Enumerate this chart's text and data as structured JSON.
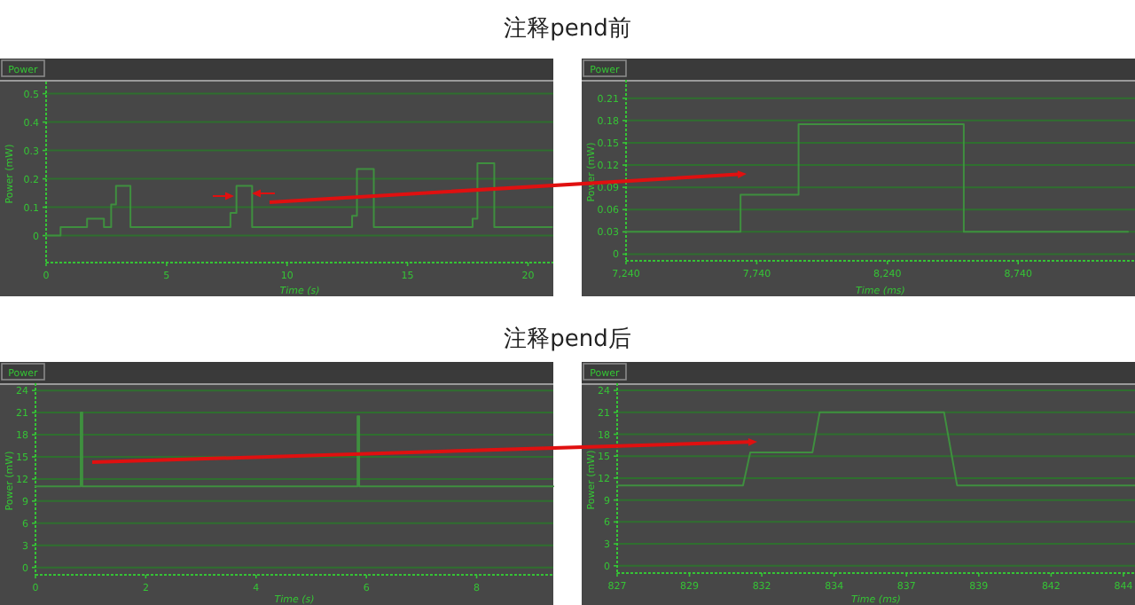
{
  "chart_data": [
    {
      "type": "step",
      "title": "注释pend前",
      "xlabel": "Time (s)",
      "ylabel": "Power (mW)",
      "xlim": [
        0,
        21.05
      ],
      "ylim": [
        -0.095,
        0.53
      ],
      "xticks": [
        0,
        5,
        10,
        15,
        20
      ],
      "yticks": [
        0,
        0.1,
        0.2,
        0.3,
        0.4,
        0.5
      ],
      "grid": "y",
      "legend": "top left",
      "series": [
        {
          "name": "Power",
          "color": "#3f8f3f",
          "x": [
            0,
            0.6,
            1.7,
            2.4,
            2.7,
            2.9,
            3.5,
            7.65,
            7.9,
            8.55,
            12.7,
            12.9,
            13.6,
            17.7,
            17.9,
            18.6,
            21
          ],
          "values": [
            0,
            0.03,
            0.06,
            0.03,
            0.11,
            0.175,
            0.03,
            0.08,
            0.175,
            0.03,
            0.07,
            0.235,
            0.03,
            0.06,
            0.255,
            0.03,
            0.03
          ]
        }
      ]
    },
    {
      "type": "step",
      "xlabel": "Time (ms)",
      "ylabel": "Power (mW)",
      "xlim": [
        7240,
        9187
      ],
      "ylim": [
        -0.009,
        0.23
      ],
      "xticks": [
        {
          "value": 7240,
          "label": "7,240"
        },
        {
          "value": 7740,
          "label": "7,740"
        },
        {
          "value": 8240,
          "label": "8,240"
        },
        {
          "value": 8740,
          "label": "8,740"
        }
      ],
      "yticks": [
        0,
        0.03,
        0.06,
        0.09,
        0.12,
        0.15,
        0.18,
        0.21
      ],
      "grid": "y",
      "legend": "top left",
      "series": [
        {
          "name": "Power",
          "color": "#3f8f3f",
          "x": [
            7240,
            7678,
            7900,
            8532,
            9160
          ],
          "values": [
            0.03,
            0.08,
            0.175,
            0.03,
            0.03
          ]
        }
      ]
    },
    {
      "type": "step",
      "title": "注释pend后",
      "xlabel": "Time (s)",
      "ylabel": "Power (mW)",
      "xlim": [
        0,
        9.39
      ],
      "ylim": [
        -1,
        24.5
      ],
      "xticks": [
        0,
        2,
        4,
        6,
        8
      ],
      "yticks": [
        0,
        3,
        6,
        9,
        12,
        15,
        18,
        21,
        24
      ],
      "grid": "y",
      "legend": "top left",
      "series": [
        {
          "name": "Power",
          "color": "#3f8f3f",
          "x": [
            0,
            0.82,
            0.85,
            5.84,
            5.87,
            9.39
          ],
          "values": [
            11,
            21,
            11,
            20.5,
            11,
            11
          ]
        }
      ]
    },
    {
      "type": "line",
      "xlabel": "Time (ms)",
      "ylabel": "Power (mW)",
      "xlim": [
        827,
        844.9
      ],
      "ylim": [
        -1,
        24.5
      ],
      "xticks": [
        {
          "value": 827,
          "label": "827"
        },
        {
          "value": 829.5,
          "label": "829"
        },
        {
          "value": 832,
          "label": "832"
        },
        {
          "value": 834.5,
          "label": "834"
        },
        {
          "value": 837,
          "label": "837"
        },
        {
          "value": 839.5,
          "label": "839"
        },
        {
          "value": 842,
          "label": "842"
        },
        {
          "value": 844.5,
          "label": "844"
        }
      ],
      "yticks": [
        0,
        3,
        6,
        9,
        12,
        15,
        18,
        21,
        24
      ],
      "grid": "y",
      "legend": "top left",
      "series": [
        {
          "name": "Power",
          "color": "#3f8f3f",
          "x": [
            827,
            831.35,
            831.6,
            833.75,
            834.0,
            838.3,
            838.75,
            844.9
          ],
          "values": [
            11,
            11,
            15.5,
            15.5,
            21,
            21,
            11,
            11
          ]
        }
      ]
    }
  ]
}
